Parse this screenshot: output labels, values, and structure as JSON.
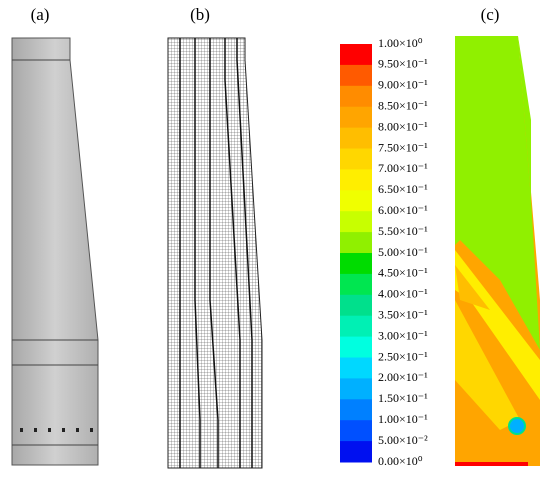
{
  "panels": [
    {
      "label": "(a)"
    },
    {
      "label": "(b)"
    },
    {
      "label": "(c)"
    }
  ],
  "colorbar": {
    "labels": [
      "1.00×10⁰",
      "9.50×10⁻¹",
      "9.00×10⁻¹",
      "8.50×10⁻¹",
      "8.00×10⁻¹",
      "7.50×10⁻¹",
      "7.00×10⁻¹",
      "6.50×10⁻¹",
      "6.00×10⁻¹",
      "5.50×10⁻¹",
      "5.00×10⁻¹",
      "4.50×10⁻¹",
      "4.00×10⁻¹",
      "3.50×10⁻¹",
      "3.00×10⁻¹",
      "2.50×10⁻¹",
      "2.00×10⁻¹",
      "1.50×10⁻¹",
      "1.00×10⁻¹",
      "5.00×10⁻²",
      "0.00×10⁰"
    ],
    "colors": [
      "#ff0000",
      "#ff5a00",
      "#ff8c00",
      "#ffa500",
      "#ffbe00",
      "#ffd700",
      "#ffee00",
      "#f0ff00",
      "#c8ff00",
      "#90f000",
      "#00dc00",
      "#00e650",
      "#00e08c",
      "#00f0b4",
      "#00ffe0",
      "#00d8ff",
      "#00b0ff",
      "#0080ff",
      "#0050ff",
      "#0010f0"
    ]
  }
}
